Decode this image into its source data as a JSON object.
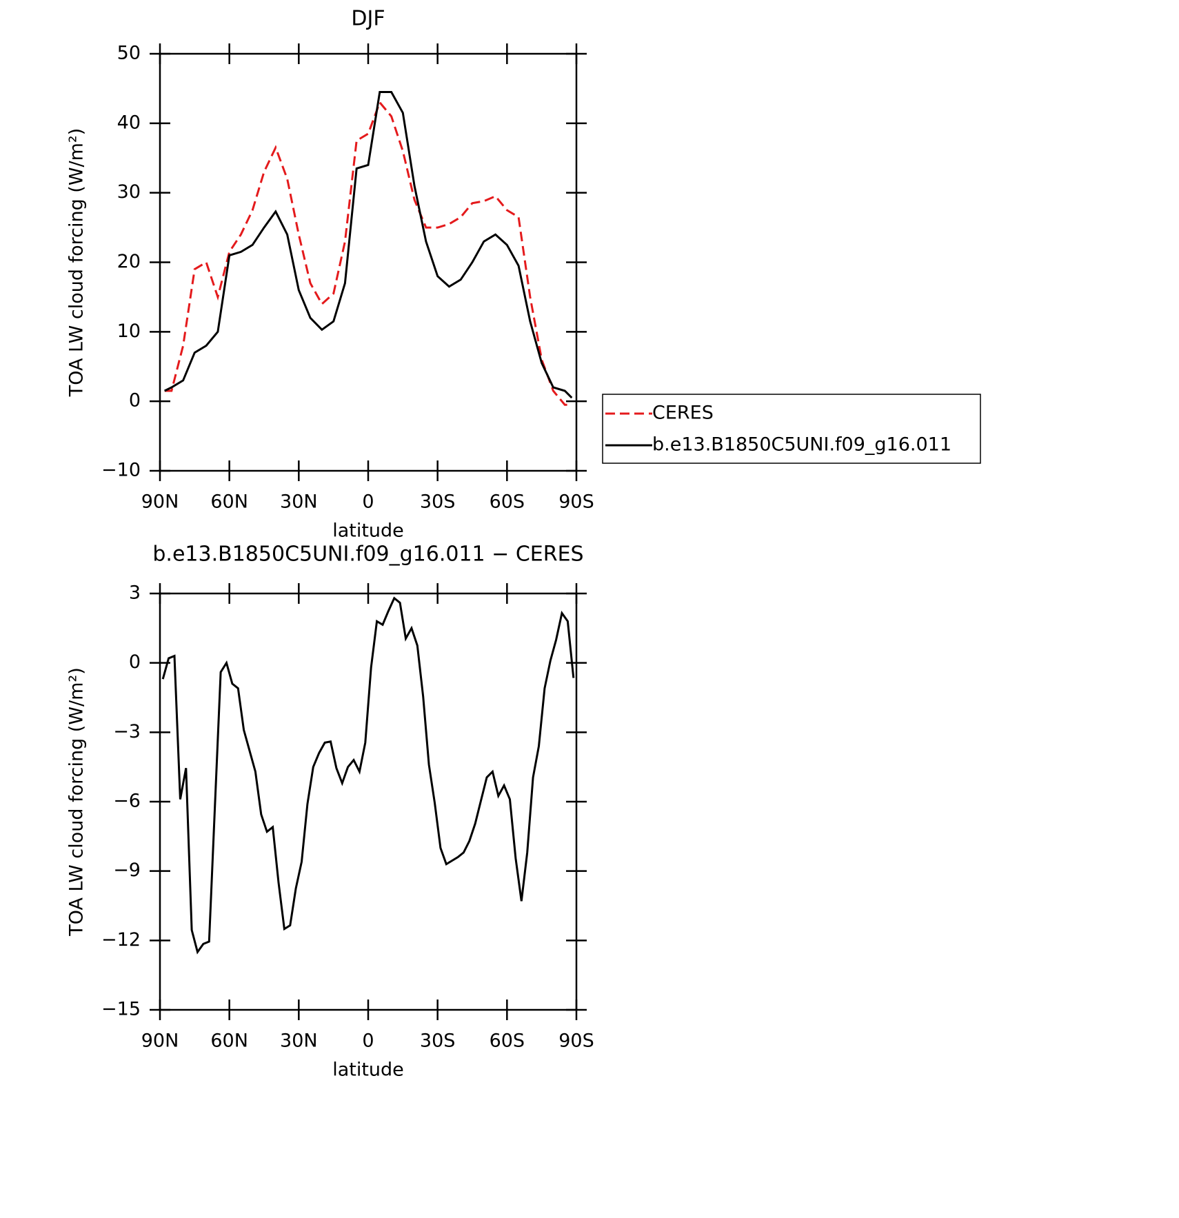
{
  "chart_data": [
    {
      "type": "line",
      "title": "DJF",
      "xlabel": "latitude",
      "ylabel": "TOA LW cloud forcing (W/m²)",
      "x": [
        88,
        85,
        80,
        75,
        70,
        65,
        60,
        55,
        50,
        45,
        40,
        35,
        30,
        25,
        20,
        15,
        10,
        5,
        0,
        -5,
        -10,
        -15,
        -20,
        -25,
        -30,
        -35,
        -40,
        -45,
        -50,
        -55,
        -60,
        -65,
        -70,
        -75,
        -80,
        -85,
        -88
      ],
      "series": [
        {
          "name": "CERES",
          "color": "#e41a1c",
          "style": "dashed",
          "values": [
            1.5,
            1.5,
            8,
            19,
            20,
            15,
            21.5,
            24,
            27.5,
            33,
            36.5,
            32,
            24,
            17,
            14,
            15.5,
            23,
            37.5,
            38.5,
            43,
            41,
            36,
            29,
            25,
            25,
            25.5,
            26.5,
            28.5,
            28.8,
            29.5,
            27.5,
            26.5,
            15,
            6,
            1.5,
            -0.5,
            -0.5
          ]
        },
        {
          "name": "b.e13.B1850C5UNI.f09_g16.011",
          "color": "#000000",
          "style": "solid",
          "values": [
            1.5,
            2,
            3,
            7,
            8,
            10,
            21,
            21.5,
            22.5,
            25,
            27.3,
            24,
            16,
            12,
            10.3,
            11.5,
            17,
            33.5,
            34,
            44.5,
            44.5,
            41.5,
            31,
            23,
            18,
            16.5,
            17.5,
            20,
            23,
            24,
            22.5,
            19.5,
            11.5,
            5.5,
            2,
            1.5,
            0.5
          ]
        }
      ],
      "xlim": [
        90,
        -90
      ],
      "xticks": [
        {
          "value": 90,
          "label": "90N"
        },
        {
          "value": 60,
          "label": "60N"
        },
        {
          "value": 30,
          "label": "30N"
        },
        0,
        {
          "value": -30,
          "label": "30S"
        },
        {
          "value": -60,
          "label": "60S"
        },
        {
          "value": -90,
          "label": "90S"
        }
      ],
      "ylim": [
        -10,
        50
      ],
      "yticks": [
        {
          "value": -10,
          "label": "−10"
        },
        0,
        10,
        20,
        30,
        40,
        50
      ],
      "legend": "outside-right"
    },
    {
      "type": "line",
      "title": "b.e13.B1850C5UNI.f09_g16.011 − CERES",
      "xlabel": "latitude",
      "ylabel": "TOA LW cloud forcing (W/m²)",
      "x": [
        88.75,
        86.25,
        83.75,
        81.25,
        78.75,
        76.25,
        73.75,
        71.25,
        68.75,
        66.25,
        63.75,
        61.25,
        58.75,
        56.25,
        53.75,
        51.25,
        48.75,
        46.25,
        43.75,
        41.25,
        38.75,
        36.25,
        33.75,
        31.25,
        28.75,
        26.25,
        23.75,
        21.25,
        18.75,
        16.25,
        13.75,
        11.25,
        8.75,
        6.25,
        3.75,
        1.25,
        -1.25,
        -3.75,
        -6.25,
        -8.75,
        -11.25,
        -13.75,
        -16.25,
        -18.75,
        -21.25,
        -23.75,
        -26.25,
        -28.75,
        -31.25,
        -33.75,
        -36.25,
        -38.75,
        -41.25,
        -43.75,
        -46.25,
        -48.75,
        -51.25,
        -53.75,
        -56.25,
        -58.75,
        -61.25,
        -63.75,
        -66.25,
        -68.75,
        -71.25,
        -73.75,
        -76.25,
        -78.75,
        -81.25,
        -83.75,
        -86.25,
        -88.75
      ],
      "series": [
        {
          "name": "b.e13.B1850C5UNI.f09_g16.011 − CERES",
          "color": "#000000",
          "style": "solid",
          "values": [
            -0.7,
            0.2,
            0.3,
            -5.9,
            -4.55,
            -11.55,
            -12.5,
            -12.15,
            -12.05,
            -6.2,
            -0.4,
            0,
            -0.9,
            -1.1,
            -2.9,
            -3.8,
            -4.7,
            -6.55,
            -7.3,
            -7.1,
            -9.5,
            -11.5,
            -11.35,
            -9.75,
            -8.6,
            -6.1,
            -4.5,
            -3.9,
            -3.45,
            -3.4,
            -4.55,
            -5.2,
            -4.5,
            -4.2,
            -4.7,
            -3.45,
            -0.2,
            1.8,
            1.65,
            2.25,
            2.8,
            2.6,
            1.05,
            1.5,
            0.75,
            -1.45,
            -4.4,
            -6.05,
            -8,
            -8.7,
            -8.55,
            -8.4,
            -8.2,
            -7.7,
            -6.95,
            -5.95,
            -4.95,
            -4.7,
            -5.75,
            -5.3,
            -5.9,
            -8.45,
            -10.3,
            -8.2,
            -4.95,
            -3.6,
            -1.1,
            0.1,
            1,
            2.15,
            1.8,
            -0.65
          ]
        }
      ],
      "xlim": [
        90,
        -90
      ],
      "xticks": [
        {
          "value": 90,
          "label": "90N"
        },
        {
          "value": 60,
          "label": "60N"
        },
        {
          "value": 30,
          "label": "30N"
        },
        0,
        {
          "value": -30,
          "label": "30S"
        },
        {
          "value": -60,
          "label": "60S"
        },
        {
          "value": -90,
          "label": "90S"
        }
      ],
      "ylim": [
        -15,
        3
      ],
      "yticks": [
        {
          "value": -15,
          "label": "−15"
        },
        {
          "value": -12,
          "label": "−12"
        },
        {
          "value": -9,
          "label": "−9"
        },
        {
          "value": -6,
          "label": "−6"
        },
        {
          "value": -3,
          "label": "−3"
        },
        0,
        3
      ]
    }
  ]
}
